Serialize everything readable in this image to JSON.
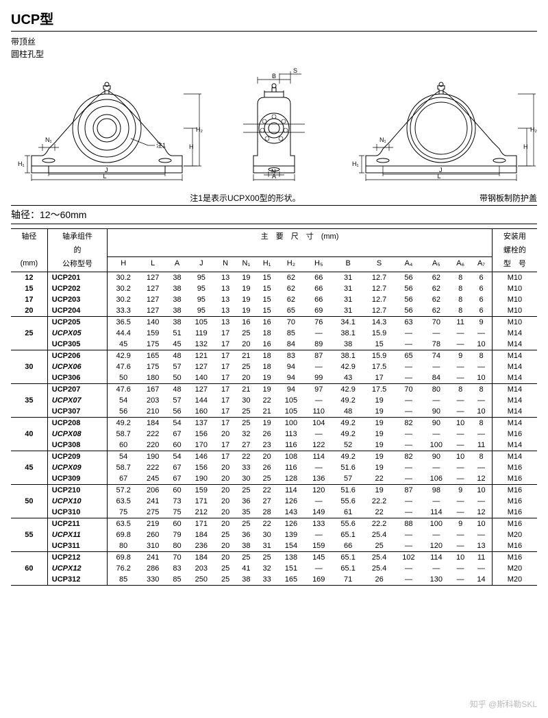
{
  "title": "UCP型",
  "left_labels": [
    "带顶丝",
    "圆柱孔型"
  ],
  "note_center": "注1是表示UCPX00型的形状。",
  "note_right": "带钢板制防护盖",
  "axis_range": "轴径：12～60mm",
  "diagram_labels": {
    "H": "H",
    "H1": "H₁",
    "H2": "H₂",
    "J": "J",
    "L": "L",
    "N": "N",
    "N1": "N₁",
    "A": "A",
    "B": "B",
    "S": "S",
    "note1": "注1"
  },
  "header": {
    "shaft": "轴径",
    "shaft_unit": "(mm)",
    "model_l1": "轴承组件",
    "model_l2": "的",
    "model_l3": "公称型号",
    "dims": "主　要　尺　寸　(mm)",
    "bolt_l1": "安装用",
    "bolt_l2": "螺栓的",
    "bolt_l3": "型　号",
    "cols": [
      "H",
      "L",
      "A",
      "J",
      "N",
      "N₁",
      "H₁",
      "H₂",
      "H₅",
      "B",
      "S",
      "A₄",
      "A₅",
      "A₆",
      "A₇"
    ]
  },
  "groups": [
    {
      "shaft": [
        "12",
        "15",
        "17",
        "20"
      ],
      "rows": [
        {
          "m": "UCP201",
          "it": false,
          "v": [
            "30.2",
            "127",
            "38",
            "95",
            "13",
            "19",
            "15",
            "62",
            "66",
            "31",
            "12.7",
            "56",
            "62",
            "8",
            "6",
            "M10"
          ]
        },
        {
          "m": "UCP202",
          "it": false,
          "v": [
            "30.2",
            "127",
            "38",
            "95",
            "13",
            "19",
            "15",
            "62",
            "66",
            "31",
            "12.7",
            "56",
            "62",
            "8",
            "6",
            "M10"
          ]
        },
        {
          "m": "UCP203",
          "it": false,
          "v": [
            "30.2",
            "127",
            "38",
            "95",
            "13",
            "19",
            "15",
            "62",
            "66",
            "31",
            "12.7",
            "56",
            "62",
            "8",
            "6",
            "M10"
          ]
        },
        {
          "m": "UCP204",
          "it": false,
          "v": [
            "33.3",
            "127",
            "38",
            "95",
            "13",
            "19",
            "15",
            "65",
            "69",
            "31",
            "12.7",
            "56",
            "62",
            "8",
            "6",
            "M10"
          ]
        }
      ]
    },
    {
      "shaft": [
        "25"
      ],
      "rows": [
        {
          "m": "UCP205",
          "it": false,
          "v": [
            "36.5",
            "140",
            "38",
            "105",
            "13",
            "16",
            "16",
            "70",
            "76",
            "34.1",
            "14.3",
            "63",
            "70",
            "11",
            "9",
            "M10"
          ]
        },
        {
          "m": "UCPX05",
          "it": true,
          "v": [
            "44.4",
            "159",
            "51",
            "119",
            "17",
            "25",
            "18",
            "85",
            "—",
            "38.1",
            "15.9",
            "—",
            "—",
            "—",
            "—",
            "M14"
          ]
        },
        {
          "m": "UCP305",
          "it": false,
          "v": [
            "45",
            "175",
            "45",
            "132",
            "17",
            "20",
            "16",
            "84",
            "89",
            "38",
            "15",
            "—",
            "78",
            "—",
            "10",
            "M14"
          ]
        }
      ]
    },
    {
      "shaft": [
        "30"
      ],
      "rows": [
        {
          "m": "UCP206",
          "it": false,
          "v": [
            "42.9",
            "165",
            "48",
            "121",
            "17",
            "21",
            "18",
            "83",
            "87",
            "38.1",
            "15.9",
            "65",
            "74",
            "9",
            "8",
            "M14"
          ]
        },
        {
          "m": "UCPX06",
          "it": true,
          "v": [
            "47.6",
            "175",
            "57",
            "127",
            "17",
            "25",
            "18",
            "94",
            "—",
            "42.9",
            "17.5",
            "—",
            "—",
            "—",
            "—",
            "M14"
          ]
        },
        {
          "m": "UCP306",
          "it": false,
          "v": [
            "50",
            "180",
            "50",
            "140",
            "17",
            "20",
            "19",
            "94",
            "99",
            "43",
            "17",
            "—",
            "84",
            "—",
            "10",
            "M14"
          ]
        }
      ]
    },
    {
      "shaft": [
        "35"
      ],
      "rows": [
        {
          "m": "UCP207",
          "it": false,
          "v": [
            "47.6",
            "167",
            "48",
            "127",
            "17",
            "21",
            "19",
            "94",
            "97",
            "42.9",
            "17.5",
            "70",
            "80",
            "8",
            "8",
            "M14"
          ]
        },
        {
          "m": "UCPX07",
          "it": true,
          "v": [
            "54",
            "203",
            "57",
            "144",
            "17",
            "30",
            "22",
            "105",
            "—",
            "49.2",
            "19",
            "—",
            "—",
            "—",
            "—",
            "M14"
          ]
        },
        {
          "m": "UCP307",
          "it": false,
          "v": [
            "56",
            "210",
            "56",
            "160",
            "17",
            "25",
            "21",
            "105",
            "110",
            "48",
            "19",
            "—",
            "90",
            "—",
            "10",
            "M14"
          ]
        }
      ]
    },
    {
      "shaft": [
        "40"
      ],
      "rows": [
        {
          "m": "UCP208",
          "it": false,
          "v": [
            "49.2",
            "184",
            "54",
            "137",
            "17",
            "25",
            "19",
            "100",
            "104",
            "49.2",
            "19",
            "82",
            "90",
            "10",
            "8",
            "M14"
          ]
        },
        {
          "m": "UCPX08",
          "it": true,
          "v": [
            "58.7",
            "222",
            "67",
            "156",
            "20",
            "32",
            "26",
            "113",
            "—",
            "49.2",
            "19",
            "—",
            "—",
            "—",
            "—",
            "M16"
          ]
        },
        {
          "m": "UCP308",
          "it": false,
          "v": [
            "60",
            "220",
            "60",
            "170",
            "17",
            "27",
            "23",
            "116",
            "122",
            "52",
            "19",
            "—",
            "100",
            "—",
            "11",
            "M14"
          ]
        }
      ]
    },
    {
      "shaft": [
        "45"
      ],
      "rows": [
        {
          "m": "UCP209",
          "it": false,
          "v": [
            "54",
            "190",
            "54",
            "146",
            "17",
            "22",
            "20",
            "108",
            "114",
            "49.2",
            "19",
            "82",
            "90",
            "10",
            "8",
            "M14"
          ]
        },
        {
          "m": "UCPX09",
          "it": true,
          "v": [
            "58.7",
            "222",
            "67",
            "156",
            "20",
            "33",
            "26",
            "116",
            "—",
            "51.6",
            "19",
            "—",
            "—",
            "—",
            "—",
            "M16"
          ]
        },
        {
          "m": "UCP309",
          "it": false,
          "v": [
            "67",
            "245",
            "67",
            "190",
            "20",
            "30",
            "25",
            "128",
            "136",
            "57",
            "22",
            "—",
            "106",
            "—",
            "12",
            "M16"
          ]
        }
      ]
    },
    {
      "shaft": [
        "50"
      ],
      "rows": [
        {
          "m": "UCP210",
          "it": false,
          "v": [
            "57.2",
            "206",
            "60",
            "159",
            "20",
            "25",
            "22",
            "114",
            "120",
            "51.6",
            "19",
            "87",
            "98",
            "9",
            "10",
            "M16"
          ]
        },
        {
          "m": "UCPX10",
          "it": true,
          "v": [
            "63.5",
            "241",
            "73",
            "171",
            "20",
            "36",
            "27",
            "126",
            "—",
            "55.6",
            "22.2",
            "—",
            "—",
            "—",
            "—",
            "M16"
          ]
        },
        {
          "m": "UCP310",
          "it": false,
          "v": [
            "75",
            "275",
            "75",
            "212",
            "20",
            "35",
            "28",
            "143",
            "149",
            "61",
            "22",
            "—",
            "114",
            "—",
            "12",
            "M16"
          ]
        }
      ]
    },
    {
      "shaft": [
        "55"
      ],
      "rows": [
        {
          "m": "UCP211",
          "it": false,
          "v": [
            "63.5",
            "219",
            "60",
            "171",
            "20",
            "25",
            "22",
            "126",
            "133",
            "55.6",
            "22.2",
            "88",
            "100",
            "9",
            "10",
            "M16"
          ]
        },
        {
          "m": "UCPX11",
          "it": true,
          "v": [
            "69.8",
            "260",
            "79",
            "184",
            "25",
            "36",
            "30",
            "139",
            "—",
            "65.1",
            "25.4",
            "—",
            "—",
            "—",
            "—",
            "M20"
          ]
        },
        {
          "m": "UCP311",
          "it": false,
          "v": [
            "80",
            "310",
            "80",
            "236",
            "20",
            "38",
            "31",
            "154",
            "159",
            "66",
            "25",
            "—",
            "120",
            "—",
            "13",
            "M16"
          ]
        }
      ]
    },
    {
      "shaft": [
        "60"
      ],
      "rows": [
        {
          "m": "UCP212",
          "it": false,
          "v": [
            "69.8",
            "241",
            "70",
            "184",
            "20",
            "25",
            "25",
            "138",
            "145",
            "65.1",
            "25.4",
            "102",
            "114",
            "10",
            "11",
            "M16"
          ]
        },
        {
          "m": "UCPX12",
          "it": true,
          "v": [
            "76.2",
            "286",
            "83",
            "203",
            "25",
            "41",
            "32",
            "151",
            "—",
            "65.1",
            "25.4",
            "—",
            "—",
            "—",
            "—",
            "M20"
          ]
        },
        {
          "m": "UCP312",
          "it": false,
          "v": [
            "85",
            "330",
            "85",
            "250",
            "25",
            "38",
            "33",
            "165",
            "169",
            "71",
            "26",
            "—",
            "130",
            "—",
            "14",
            "M20"
          ]
        }
      ]
    }
  ],
  "watermark": "知乎 @斯科勒SKL"
}
